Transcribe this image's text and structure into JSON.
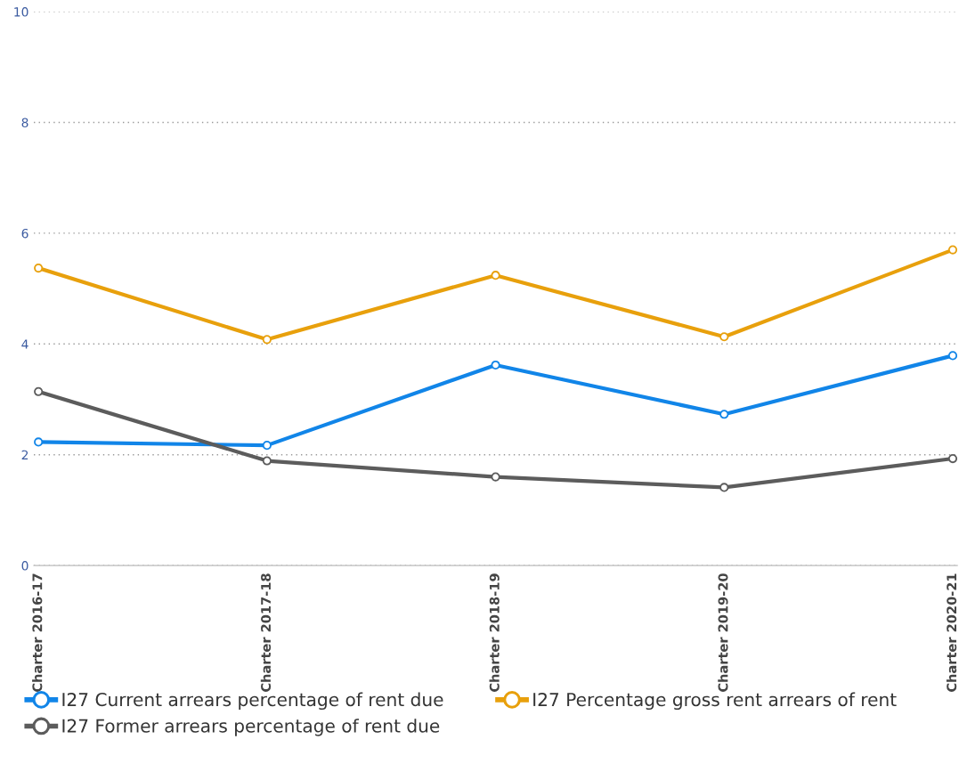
{
  "chart_data": {
    "type": "line",
    "categories": [
      "Charter 2016-17",
      "Charter 2017-18",
      "Charter 2018-19",
      "Charter 2019-20",
      "Charter 2020-21"
    ],
    "series": [
      {
        "name": "I27 Current arrears percentage of rent due",
        "color": "#1185e8",
        "values": [
          2.23,
          2.17,
          3.62,
          2.73,
          3.79
        ]
      },
      {
        "name": "I27 Former arrears percentage of rent due",
        "color": "#5c5c5c",
        "values": [
          3.14,
          1.89,
          1.6,
          1.41,
          1.93
        ]
      },
      {
        "name": "I27 Percentage gross rent arrears of rent",
        "color": "#e8a00c",
        "values": [
          5.37,
          4.08,
          5.24,
          4.13,
          5.7
        ]
      }
    ],
    "ylim": [
      0,
      10
    ],
    "yticks": [
      0,
      2,
      4,
      6,
      8,
      10
    ],
    "grid": "y",
    "legend": "bottom",
    "marker": "circle",
    "line_style": "solid"
  }
}
